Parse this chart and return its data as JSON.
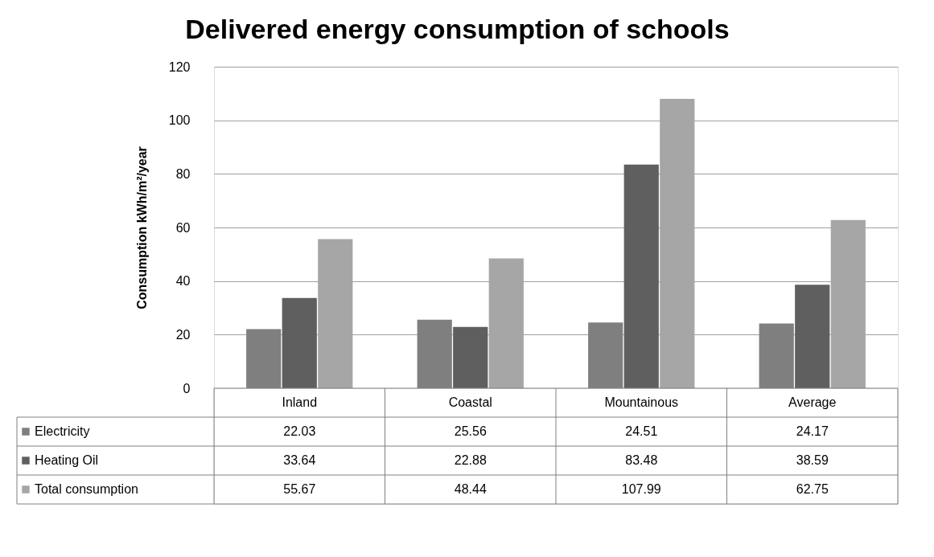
{
  "chart_data": {
    "type": "bar",
    "title": "Delivered energy consumption of schools",
    "ylabel": "Consumption kWh/m²/year",
    "categories": [
      "Inland",
      "Coastal",
      "Mountainous",
      "Average"
    ],
    "series": [
      {
        "name": "Electricity",
        "color": "#7f7f7f",
        "values": [
          22.03,
          25.56,
          24.51,
          24.17
        ]
      },
      {
        "name": "Heating Oil",
        "color": "#5f5f5f",
        "values": [
          33.64,
          22.88,
          83.48,
          38.59
        ]
      },
      {
        "name": "Total consumption",
        "color": "#a6a6a6",
        "values": [
          55.67,
          48.44,
          107.99,
          62.75
        ]
      }
    ],
    "ylim": [
      0,
      120
    ],
    "yticks": [
      0,
      20,
      40,
      60,
      80,
      100,
      120
    ],
    "grid": "y",
    "legend": "bottom",
    "data_labels": true
  }
}
